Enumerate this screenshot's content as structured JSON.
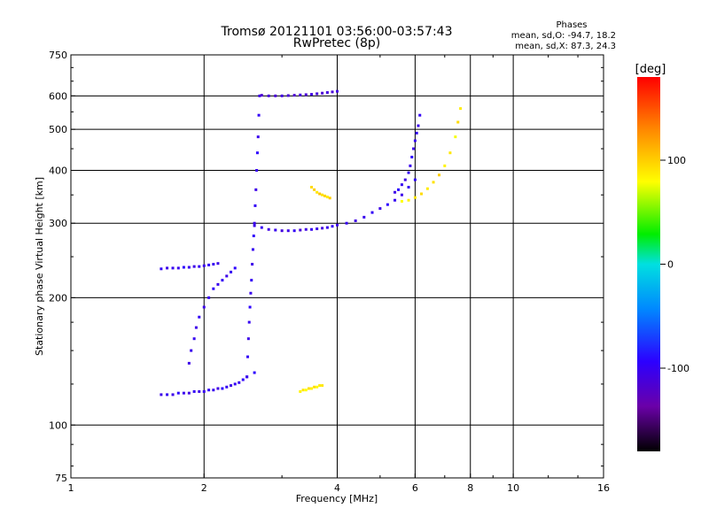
{
  "chart_data": {
    "type": "scatter",
    "title": "Tromsø 20121101 03:56:00-03:57:43",
    "subtitle": "RwPretec (8p)",
    "stats": {
      "heading": "Phases",
      "line_o": "mean, sd,O: -94.7, 18.2",
      "line_x": "mean, sd,X:  87.3, 24.3"
    },
    "xlabel": "Frequency [MHz]",
    "ylabel": "Stationary phase Virtual Height [km]",
    "x_scale": "log",
    "y_scale": "log",
    "xlim": [
      1,
      16
    ],
    "ylim": [
      75,
      750
    ],
    "x_ticks": [
      "1",
      "2",
      "4",
      "6",
      "8",
      "10",
      "16"
    ],
    "y_ticks": [
      "75",
      "100",
      "200",
      "300",
      "400",
      "500",
      "600",
      "750"
    ],
    "x_grid": [
      2,
      4,
      6,
      8,
      10
    ],
    "y_grid": [
      100,
      200,
      300,
      400,
      500,
      600
    ],
    "colorbar": {
      "label": "[deg]",
      "range": [
        -180,
        180
      ],
      "ticks": [
        "100",
        "0",
        "-100"
      ],
      "colormap": "rainbow"
    },
    "series": [
      {
        "trace": "E-layer flat (~120km)",
        "x": [
          1.6,
          1.65,
          1.7,
          1.75,
          1.8,
          1.85,
          1.9,
          1.95,
          2.0,
          2.05,
          2.1,
          2.15,
          2.2,
          2.25,
          2.3,
          2.35,
          2.4,
          2.45,
          2.5,
          2.6
        ],
        "y": [
          118,
          118,
          118,
          119,
          119,
          119,
          120,
          120,
          120,
          121,
          121,
          122,
          122,
          123,
          124,
          125,
          126,
          128,
          130,
          133
        ],
        "phase": [
          -110,
          -105,
          -110,
          -100,
          -108,
          -112,
          -104,
          -110,
          -106,
          -102,
          -108,
          -112,
          -100,
          -106,
          -110,
          -104,
          -108,
          -102,
          -106,
          -100
        ]
      },
      {
        "trace": "Lower layer 2 ramp",
        "x": [
          1.85,
          1.87,
          1.9,
          1.92,
          1.95,
          2.0,
          2.05,
          2.1,
          2.15,
          2.2,
          2.25,
          2.3,
          2.35
        ],
        "y": [
          140,
          150,
          160,
          170,
          180,
          190,
          200,
          210,
          215,
          220,
          225,
          230,
          235
        ],
        "phase": [
          -110,
          -108,
          -106,
          -110,
          -104,
          -108,
          -106,
          -102,
          -108,
          -104,
          -110,
          -106,
          -100
        ]
      },
      {
        "trace": "Flat 235km",
        "x": [
          1.6,
          1.65,
          1.7,
          1.75,
          1.8,
          1.85,
          1.9,
          1.95,
          2.0,
          2.05,
          2.1,
          2.15
        ],
        "y": [
          234,
          235,
          235,
          235,
          236,
          236,
          237,
          237,
          238,
          239,
          240,
          241
        ],
        "phase": [
          -104,
          -110,
          -106,
          -108,
          -100,
          -106,
          -110,
          -104,
          -108,
          -102,
          -106,
          -110
        ]
      },
      {
        "trace": "F vertical riser (~2.5MHz)",
        "x": [
          2.5,
          2.51,
          2.52,
          2.53,
          2.54,
          2.55,
          2.56,
          2.57,
          2.58,
          2.59,
          2.6,
          2.61,
          2.62,
          2.63,
          2.64,
          2.65,
          2.66,
          2.67
        ],
        "y": [
          130,
          145,
          160,
          175,
          190,
          205,
          220,
          240,
          260,
          280,
          300,
          330,
          360,
          400,
          440,
          480,
          540,
          600
        ],
        "phase": [
          -108,
          -104,
          -110,
          -106,
          -100,
          -108,
          -104,
          -110,
          -106,
          -102,
          -108,
          -104,
          -110,
          -106,
          -100,
          -108,
          -104,
          -110
        ]
      },
      {
        "trace": "F2 O-trace",
        "x": [
          2.6,
          2.7,
          2.8,
          2.9,
          3.0,
          3.1,
          3.2,
          3.3,
          3.4,
          3.5,
          3.6,
          3.7,
          3.8,
          3.9,
          4.0,
          4.2,
          4.4,
          4.6,
          4.8,
          5.0,
          5.2,
          5.4,
          5.6,
          5.8,
          6.0
        ],
        "y": [
          296,
          293,
          290,
          289,
          288,
          288,
          288,
          289,
          290,
          290,
          291,
          292,
          293,
          295,
          297,
          300,
          304,
          310,
          318,
          325,
          332,
          340,
          350,
          365,
          380
        ],
        "phase": [
          -110,
          -105,
          -112,
          -108,
          -115,
          -110,
          -104,
          -118,
          -112,
          -106,
          -110,
          -114,
          -108,
          -104,
          -110,
          -106,
          -112,
          -108,
          -104,
          -110,
          -100,
          -106,
          -110,
          -104,
          -100
        ]
      },
      {
        "trace": "F2 O-trace cusp",
        "x": [
          5.4,
          5.5,
          5.6,
          5.7,
          5.8,
          5.85,
          5.9,
          5.95,
          6.0,
          6.05,
          6.1,
          6.15
        ],
        "y": [
          355,
          360,
          370,
          380,
          395,
          410,
          430,
          450,
          470,
          490,
          510,
          540
        ],
        "phase": [
          -110,
          -100,
          -106,
          -112,
          -104,
          -108,
          -100,
          -110,
          -106,
          -102,
          -108,
          -104
        ]
      },
      {
        "trace": "F2 X-trace",
        "x": [
          5.6,
          5.8,
          6.0,
          6.2,
          6.4,
          6.6,
          6.8,
          7.0,
          7.2,
          7.4,
          7.5,
          7.6
        ],
        "y": [
          338,
          340,
          345,
          352,
          362,
          375,
          390,
          410,
          440,
          480,
          520,
          560
        ],
        "phase": [
          80,
          85,
          90,
          95,
          88,
          92,
          100,
          85,
          90,
          78,
          95,
          88
        ]
      },
      {
        "trace": "Upper plateau ~600km",
        "x": [
          2.7,
          2.8,
          2.9,
          3.0,
          3.1,
          3.2,
          3.3,
          3.4,
          3.5,
          3.6,
          3.7,
          3.8,
          3.9,
          4.0
        ],
        "y": [
          602,
          600,
          600,
          600,
          601,
          602,
          603,
          604,
          605,
          607,
          609,
          611,
          613,
          615
        ],
        "phase": [
          -120,
          -115,
          -118,
          -112,
          -116,
          -120,
          -114,
          -118,
          -112,
          -116,
          -120,
          -114,
          -118,
          -112
        ]
      },
      {
        "trace": "X cluster ~350km",
        "x": [
          3.5,
          3.55,
          3.6,
          3.65,
          3.7,
          3.75,
          3.8,
          3.85
        ],
        "y": [
          365,
          360,
          355,
          352,
          350,
          348,
          346,
          344
        ],
        "phase": [
          95,
          100,
          90,
          105,
          92,
          98,
          88,
          102
        ]
      },
      {
        "trace": "X cluster ~120km",
        "x": [
          3.3,
          3.35,
          3.4,
          3.45,
          3.5,
          3.55,
          3.6,
          3.65,
          3.7
        ],
        "y": [
          120,
          121,
          121,
          122,
          122,
          123,
          123,
          124,
          124
        ],
        "phase": [
          85,
          90,
          80,
          92,
          86,
          94,
          82,
          88,
          90
        ]
      }
    ]
  }
}
